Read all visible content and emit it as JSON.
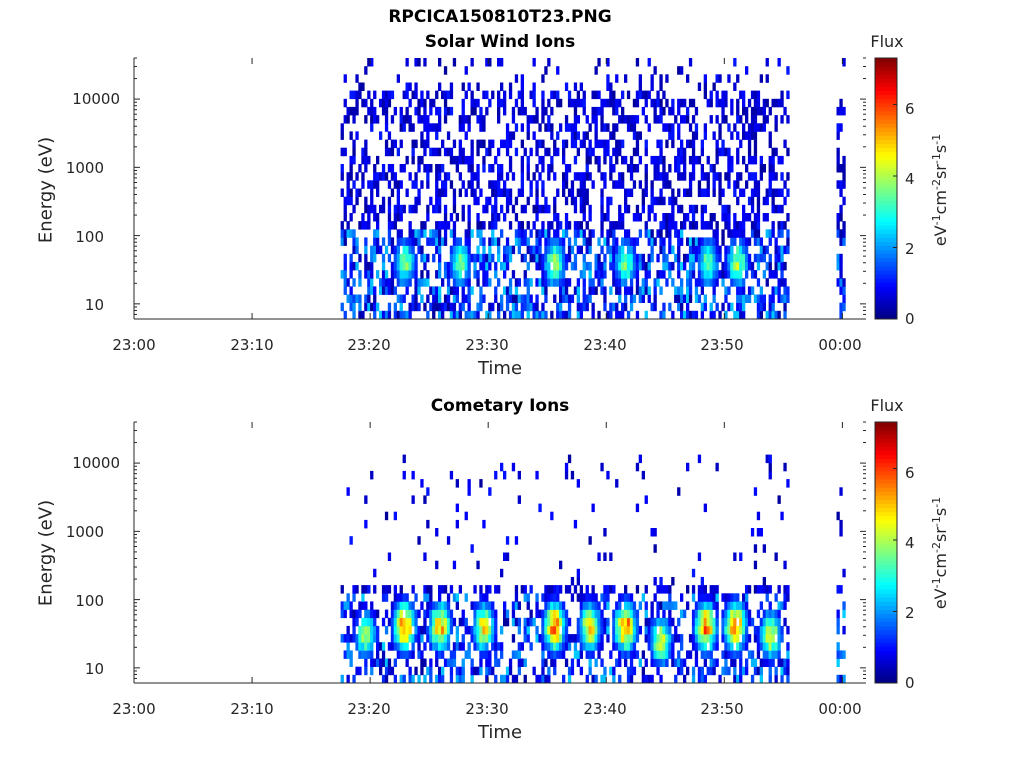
{
  "figure_title": "RPCICA150810T23.PNG",
  "colors": {
    "axis": "#262626",
    "colormap": [
      "#00007f",
      "#0000ff",
      "#007fff",
      "#00ffff",
      "#7fff7f",
      "#ffff00",
      "#ff7f00",
      "#ff0000",
      "#7f0000"
    ]
  },
  "chart_data": [
    {
      "type": "heatmap",
      "title": "Solar Wind Ions",
      "xlabel": "Time",
      "ylabel": "Energy (eV)",
      "x_tick_labels": [
        "23:00",
        "23:10",
        "23:20",
        "23:30",
        "23:40",
        "23:50",
        "00:00"
      ],
      "x_range_minutes": [
        0,
        62
      ],
      "y_scale": "log",
      "y_tick_labels": [
        "10",
        "100",
        "1000",
        "10000"
      ],
      "y_range_ev": [
        6,
        40000
      ],
      "colorbar": {
        "label": "Flux",
        "unit_label": "eV-1cm-2sr-1s-1",
        "ticks": [
          "0",
          "2",
          "4",
          "6"
        ],
        "range": [
          0,
          7.3
        ]
      },
      "data_coverage_minutes": [
        [
          17.5,
          55.5
        ],
        [
          59.5,
          60.2
        ]
      ],
      "hotspots": [
        {
          "time_min": 22.8,
          "energy_ev": 40,
          "flux": 4.3
        },
        {
          "time_min": 27.5,
          "energy_ev": 40,
          "flux": 4.0
        },
        {
          "time_min": 35.5,
          "energy_ev": 40,
          "flux": 4.5
        },
        {
          "time_min": 41.5,
          "energy_ev": 40,
          "flux": 4.2
        },
        {
          "time_min": 48.5,
          "energy_ev": 40,
          "flux": 4.0
        },
        {
          "time_min": 51.0,
          "energy_ev": 40,
          "flux": 4.6
        }
      ],
      "grid": false
    },
    {
      "type": "heatmap",
      "title": "Cometary Ions",
      "xlabel": "Time",
      "ylabel": "Energy (eV)",
      "x_tick_labels": [
        "23:00",
        "23:10",
        "23:20",
        "23:30",
        "23:40",
        "23:50",
        "00:00"
      ],
      "x_range_minutes": [
        0,
        62
      ],
      "y_scale": "log",
      "y_tick_labels": [
        "10",
        "100",
        "1000",
        "10000"
      ],
      "y_range_ev": [
        6,
        40000
      ],
      "colorbar": {
        "label": "Flux",
        "unit_label": "eV-1cm-2sr-1s-1",
        "ticks": [
          "0",
          "2",
          "4",
          "6"
        ],
        "range": [
          0,
          7.3
        ]
      },
      "data_coverage_minutes": [
        [
          17.5,
          55.5
        ],
        [
          59.5,
          60.2
        ]
      ],
      "hotspots": [
        {
          "time_min": 19.5,
          "energy_ev": 30,
          "flux": 4.5
        },
        {
          "time_min": 22.8,
          "energy_ev": 40,
          "flux": 6.6
        },
        {
          "time_min": 25.8,
          "energy_ev": 40,
          "flux": 6.0
        },
        {
          "time_min": 29.5,
          "energy_ev": 40,
          "flux": 5.5
        },
        {
          "time_min": 35.5,
          "energy_ev": 40,
          "flux": 6.6
        },
        {
          "time_min": 38.5,
          "energy_ev": 40,
          "flux": 5.5
        },
        {
          "time_min": 41.5,
          "energy_ev": 40,
          "flux": 6.6
        },
        {
          "time_min": 44.5,
          "energy_ev": 25,
          "flux": 5.0
        },
        {
          "time_min": 48.3,
          "energy_ev": 40,
          "flux": 6.6
        },
        {
          "time_min": 50.8,
          "energy_ev": 40,
          "flux": 6.8
        },
        {
          "time_min": 53.8,
          "energy_ev": 30,
          "flux": 5.0
        }
      ],
      "grid": false
    }
  ]
}
